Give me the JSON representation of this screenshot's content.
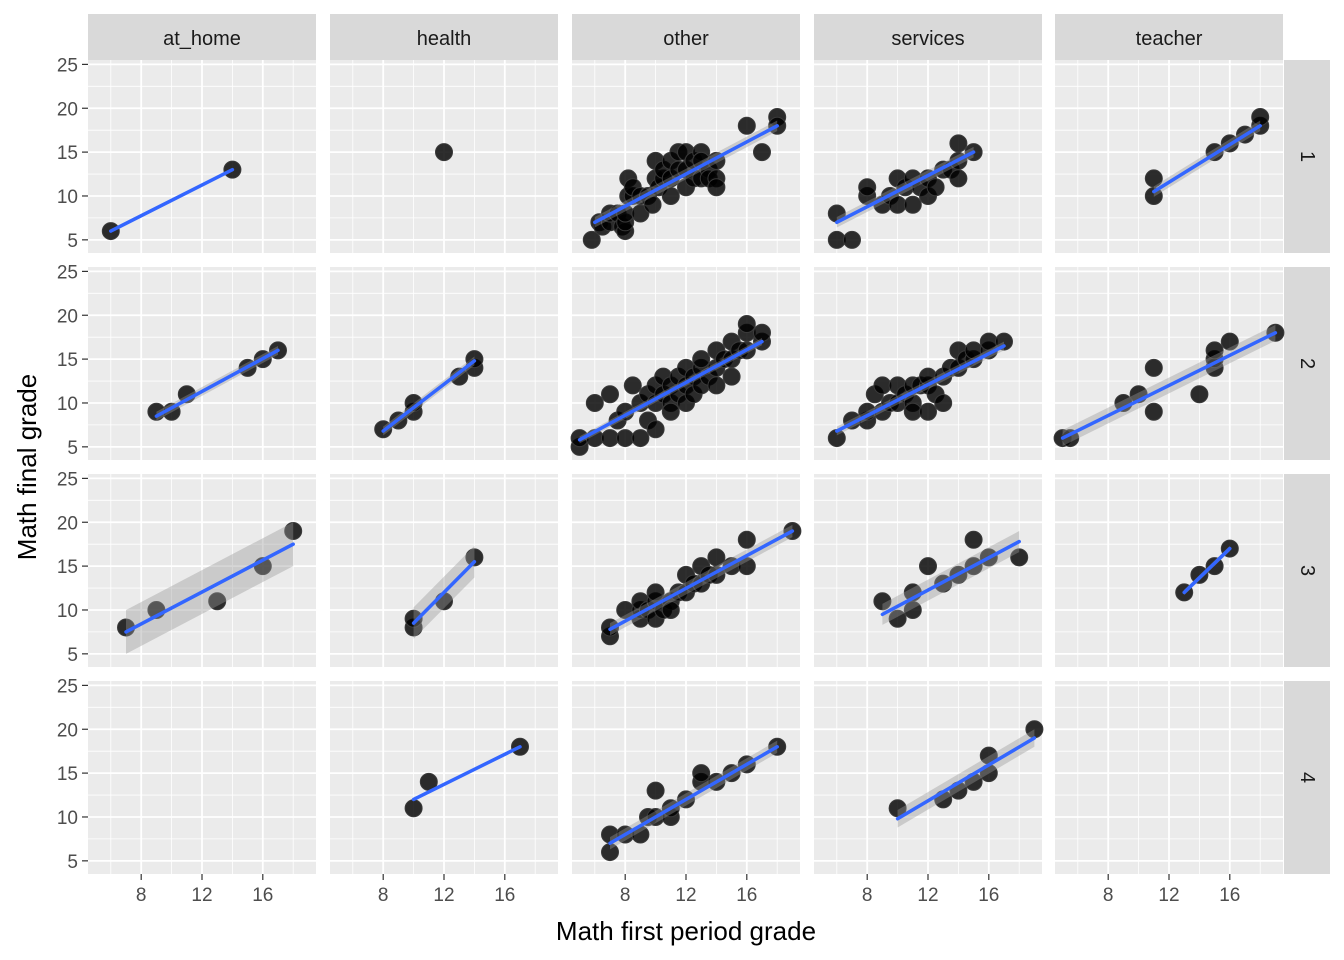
{
  "chart_data": {
    "type": "scatter",
    "facet_type": "grid",
    "xlabel": "Math first period grade",
    "ylabel": "Math final grade",
    "col_facets": [
      "at_home",
      "health",
      "other",
      "services",
      "teacher"
    ],
    "row_facets": [
      "1",
      "2",
      "3",
      "4"
    ],
    "xlim": [
      4.5,
      19.5
    ],
    "ylim": [
      3.5,
      25.5
    ],
    "x_ticks": [
      8,
      12,
      16
    ],
    "y_ticks": [
      5,
      10,
      15,
      20,
      25
    ],
    "grid": true,
    "smooth": "lm with confidence band",
    "panels": [
      {
        "row": "1",
        "col": "at_home",
        "points": [
          [
            6,
            6
          ],
          [
            14,
            13
          ]
        ],
        "fit": [
          [
            6,
            6
          ],
          [
            14,
            13
          ]
        ],
        "band": 0
      },
      {
        "row": "1",
        "col": "health",
        "points": [
          [
            12,
            15
          ]
        ],
        "fit": null,
        "band": 0
      },
      {
        "row": "1",
        "col": "other",
        "points": [
          [
            5.8,
            5
          ],
          [
            6.3,
            7
          ],
          [
            6.5,
            6.5
          ],
          [
            7,
            7
          ],
          [
            7,
            8
          ],
          [
            7.5,
            8
          ],
          [
            7.8,
            6.5
          ],
          [
            8,
            6
          ],
          [
            8,
            7
          ],
          [
            8,
            8
          ],
          [
            8.2,
            10
          ],
          [
            8.2,
            12
          ],
          [
            8.5,
            10
          ],
          [
            8.5,
            11
          ],
          [
            9,
            10
          ],
          [
            9,
            8
          ],
          [
            9.5,
            10
          ],
          [
            9.8,
            9
          ],
          [
            10,
            12
          ],
          [
            10,
            14
          ],
          [
            10.2,
            11
          ],
          [
            10.5,
            12
          ],
          [
            10.5,
            13
          ],
          [
            11,
            14
          ],
          [
            11,
            12
          ],
          [
            11,
            10
          ],
          [
            11.5,
            15
          ],
          [
            11.5,
            13
          ],
          [
            12,
            15
          ],
          [
            12,
            13
          ],
          [
            12,
            11
          ],
          [
            12.5,
            12
          ],
          [
            12.5,
            14
          ],
          [
            13,
            15
          ],
          [
            13,
            12
          ],
          [
            13,
            14
          ],
          [
            13.5,
            13
          ],
          [
            13.5,
            12
          ],
          [
            14,
            12
          ],
          [
            14,
            14
          ],
          [
            14,
            11
          ],
          [
            16,
            18
          ],
          [
            17,
            15
          ],
          [
            18,
            19
          ],
          [
            18,
            18
          ]
        ],
        "fit": [
          [
            6,
            7
          ],
          [
            18,
            18
          ]
        ],
        "band": 0.6
      },
      {
        "row": "1",
        "col": "services",
        "points": [
          [
            6,
            8
          ],
          [
            6,
            5
          ],
          [
            7,
            5
          ],
          [
            8,
            10
          ],
          [
            8,
            11
          ],
          [
            9,
            9
          ],
          [
            9.5,
            10
          ],
          [
            10,
            9
          ],
          [
            10,
            12
          ],
          [
            10.5,
            11
          ],
          [
            11,
            9
          ],
          [
            11,
            12
          ],
          [
            11.5,
            11
          ],
          [
            12,
            10
          ],
          [
            12,
            12
          ],
          [
            12.5,
            11
          ],
          [
            13,
            13
          ],
          [
            13.5,
            13
          ],
          [
            14,
            12
          ],
          [
            14,
            14
          ],
          [
            14,
            16
          ],
          [
            15,
            15
          ]
        ],
        "fit": [
          [
            6,
            7
          ],
          [
            15,
            15
          ]
        ],
        "band": 0.6
      },
      {
        "row": "1",
        "col": "teacher",
        "points": [
          [
            11,
            10
          ],
          [
            11,
            12
          ],
          [
            15,
            15
          ],
          [
            16,
            16
          ],
          [
            17,
            17
          ],
          [
            18,
            18
          ],
          [
            18,
            19
          ]
        ],
        "fit": [
          [
            11,
            10.5
          ],
          [
            18,
            18
          ]
        ],
        "band": 0.6
      },
      {
        "row": "2",
        "col": "at_home",
        "points": [
          [
            9,
            9
          ],
          [
            10,
            9
          ],
          [
            11,
            11
          ],
          [
            15,
            14
          ],
          [
            16,
            15
          ],
          [
            17,
            16
          ]
        ],
        "fit": [
          [
            9,
            8.5
          ],
          [
            17,
            16
          ]
        ],
        "band": 0.5
      },
      {
        "row": "2",
        "col": "health",
        "points": [
          [
            8,
            7
          ],
          [
            9,
            8
          ],
          [
            10,
            9
          ],
          [
            10,
            10
          ],
          [
            13,
            13
          ],
          [
            14,
            14
          ],
          [
            14,
            15
          ]
        ],
        "fit": [
          [
            8,
            6.8
          ],
          [
            14,
            14.8
          ]
        ],
        "band": 0.5
      },
      {
        "row": "2",
        "col": "other",
        "points": [
          [
            5,
            5
          ],
          [
            5,
            6
          ],
          [
            6,
            6
          ],
          [
            6,
            10
          ],
          [
            7,
            6
          ],
          [
            7,
            11
          ],
          [
            7.5,
            8
          ],
          [
            8,
            6
          ],
          [
            8,
            9
          ],
          [
            8.5,
            12
          ],
          [
            9,
            6
          ],
          [
            9,
            10
          ],
          [
            9.5,
            8
          ],
          [
            9.5,
            11
          ],
          [
            10,
            10
          ],
          [
            10,
            12
          ],
          [
            10,
            7
          ],
          [
            10.5,
            11
          ],
          [
            10.5,
            13
          ],
          [
            11,
            10
          ],
          [
            11,
            12
          ],
          [
            11,
            9
          ],
          [
            11.5,
            11
          ],
          [
            11.5,
            13
          ],
          [
            12,
            12
          ],
          [
            12,
            14
          ],
          [
            12,
            10
          ],
          [
            12.5,
            13
          ],
          [
            12.5,
            11
          ],
          [
            13,
            12
          ],
          [
            13,
            14
          ],
          [
            13,
            15
          ],
          [
            13.5,
            13
          ],
          [
            14,
            14
          ],
          [
            14,
            16
          ],
          [
            14,
            12
          ],
          [
            14.5,
            15
          ],
          [
            15,
            15
          ],
          [
            15,
            17
          ],
          [
            15,
            13
          ],
          [
            15.5,
            16
          ],
          [
            16,
            16
          ],
          [
            16,
            18
          ],
          [
            16,
            19
          ],
          [
            17,
            17
          ],
          [
            17,
            18
          ]
        ],
        "fit": [
          [
            5,
            5.8
          ],
          [
            17,
            17
          ]
        ],
        "band": 0.4
      },
      {
        "row": "2",
        "col": "services",
        "points": [
          [
            6,
            6
          ],
          [
            7,
            8
          ],
          [
            8,
            8
          ],
          [
            8,
            9
          ],
          [
            8.5,
            11
          ],
          [
            9,
            9
          ],
          [
            9,
            12
          ],
          [
            9.5,
            10
          ],
          [
            10,
            10
          ],
          [
            10,
            12
          ],
          [
            10.5,
            11
          ],
          [
            11,
            10
          ],
          [
            11,
            12
          ],
          [
            11,
            9
          ],
          [
            11.5,
            12
          ],
          [
            12,
            12
          ],
          [
            12,
            9
          ],
          [
            12,
            13
          ],
          [
            12.5,
            11
          ],
          [
            13,
            13
          ],
          [
            13,
            10
          ],
          [
            13.5,
            14
          ],
          [
            14,
            14
          ],
          [
            14,
            16
          ],
          [
            14.5,
            15
          ],
          [
            15,
            15
          ],
          [
            15,
            16
          ],
          [
            16,
            16
          ],
          [
            16,
            17
          ],
          [
            17,
            17
          ]
        ],
        "fit": [
          [
            6,
            6.8
          ],
          [
            17,
            16.5
          ]
        ],
        "band": 0.5
      },
      {
        "row": "2",
        "col": "teacher",
        "points": [
          [
            5,
            6
          ],
          [
            5.5,
            6
          ],
          [
            9,
            10
          ],
          [
            10,
            11
          ],
          [
            11,
            9
          ],
          [
            11,
            14
          ],
          [
            14,
            11
          ],
          [
            15,
            14
          ],
          [
            15,
            15
          ],
          [
            15,
            16
          ],
          [
            16,
            17
          ],
          [
            19,
            18
          ]
        ],
        "fit": [
          [
            5,
            6
          ],
          [
            19,
            18
          ]
        ],
        "band": 0.9
      },
      {
        "row": "3",
        "col": "at_home",
        "points": [
          [
            7,
            8
          ],
          [
            9,
            10
          ],
          [
            13,
            11
          ],
          [
            16,
            15
          ],
          [
            18,
            19
          ]
        ],
        "fit": [
          [
            7,
            7.5
          ],
          [
            18,
            17.5
          ]
        ],
        "band": 2.5
      },
      {
        "row": "3",
        "col": "health",
        "points": [
          [
            10,
            8
          ],
          [
            10,
            9
          ],
          [
            12,
            11
          ],
          [
            14,
            16
          ]
        ],
        "fit": [
          [
            10,
            8.5
          ],
          [
            14,
            15.5
          ]
        ],
        "band": 1.8
      },
      {
        "row": "3",
        "col": "other",
        "points": [
          [
            7,
            7
          ],
          [
            7,
            8
          ],
          [
            8,
            10
          ],
          [
            9,
            9
          ],
          [
            9,
            10
          ],
          [
            9,
            11
          ],
          [
            9.5,
            10
          ],
          [
            10,
            9
          ],
          [
            10,
            11
          ],
          [
            10,
            12
          ],
          [
            10.5,
            10
          ],
          [
            11,
            11
          ],
          [
            11,
            10
          ],
          [
            11.5,
            12
          ],
          [
            12,
            12
          ],
          [
            12,
            14
          ],
          [
            12.5,
            13
          ],
          [
            13,
            13
          ],
          [
            13,
            15
          ],
          [
            13.5,
            14
          ],
          [
            14,
            14
          ],
          [
            14,
            16
          ],
          [
            15,
            15
          ],
          [
            16,
            15
          ],
          [
            16,
            18
          ],
          [
            19,
            19
          ]
        ],
        "fit": [
          [
            7,
            7.8
          ],
          [
            19,
            19
          ]
        ],
        "band": 0.7
      },
      {
        "row": "3",
        "col": "services",
        "points": [
          [
            9,
            11
          ],
          [
            10,
            9
          ],
          [
            11,
            10
          ],
          [
            11,
            12
          ],
          [
            12,
            15
          ],
          [
            13,
            13
          ],
          [
            14,
            14
          ],
          [
            15,
            15
          ],
          [
            15,
            18
          ],
          [
            16,
            16
          ],
          [
            18,
            16
          ]
        ],
        "fit": [
          [
            9,
            9.5
          ],
          [
            18,
            17.8
          ]
        ],
        "band": 1.2
      },
      {
        "row": "3",
        "col": "teacher",
        "points": [
          [
            13,
            12
          ],
          [
            14,
            14
          ],
          [
            15,
            15
          ],
          [
            16,
            17
          ]
        ],
        "fit": [
          [
            13,
            12
          ],
          [
            16,
            17
          ]
        ],
        "band": 0.3
      },
      {
        "row": "4",
        "col": "at_home",
        "points": [],
        "fit": null,
        "band": 0
      },
      {
        "row": "4",
        "col": "health",
        "points": [
          [
            10,
            11
          ],
          [
            11,
            14
          ],
          [
            17,
            18
          ]
        ],
        "fit": [
          [
            10,
            12
          ],
          [
            17,
            18
          ]
        ],
        "band": 0
      },
      {
        "row": "4",
        "col": "other",
        "points": [
          [
            7,
            6
          ],
          [
            7,
            8
          ],
          [
            8,
            8
          ],
          [
            9,
            8
          ],
          [
            9.5,
            10
          ],
          [
            10,
            10
          ],
          [
            10,
            13
          ],
          [
            11,
            10
          ],
          [
            11,
            11
          ],
          [
            12,
            12
          ],
          [
            13,
            14
          ],
          [
            13,
            15
          ],
          [
            14,
            14
          ],
          [
            15,
            15
          ],
          [
            16,
            16
          ],
          [
            18,
            18
          ]
        ],
        "fit": [
          [
            7,
            7
          ],
          [
            18,
            18
          ]
        ],
        "band": 0.7
      },
      {
        "row": "4",
        "col": "services",
        "points": [
          [
            10,
            11
          ],
          [
            13,
            12
          ],
          [
            14,
            13
          ],
          [
            15,
            14
          ],
          [
            16,
            15
          ],
          [
            16,
            17
          ],
          [
            19,
            20
          ]
        ],
        "fit": [
          [
            10,
            9.8
          ],
          [
            19,
            19
          ]
        ],
        "band": 1.0
      },
      {
        "row": "4",
        "col": "teacher",
        "points": [],
        "fit": null,
        "band": 0
      }
    ]
  }
}
